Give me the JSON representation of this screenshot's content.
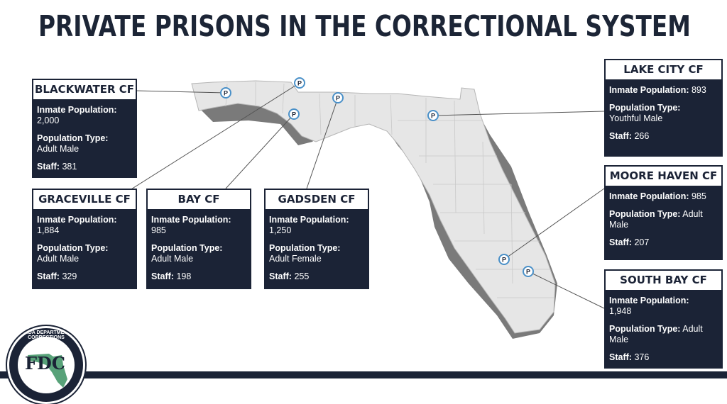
{
  "title": "PRIVATE PRISONS IN THE CORRECTIONAL SYSTEM",
  "marker_letter": "P",
  "logo_text": "FLORIDA DEPARTMENT OF CORRECTIONS",
  "logo_initials": "FDC",
  "colors": {
    "navy": "#1b2336",
    "map_land": "#e6e6e6",
    "map_shadow": "#7a7a7a",
    "marker": "#4a90c8"
  },
  "facilities": [
    {
      "name": "BLACKWATER CF",
      "fields": [
        {
          "label": "Inmate Population:",
          "value": "2,000"
        },
        {
          "label": "Population Type:",
          "value": "Adult Male"
        },
        {
          "label": "Staff:",
          "value": "381"
        }
      ]
    },
    {
      "name": "GRACEVILLE CF",
      "fields": [
        {
          "label": "Inmate Population:",
          "value": "1,884"
        },
        {
          "label": "Population Type:",
          "value": "Adult Male"
        },
        {
          "label": "Staff:",
          "value": "329"
        }
      ]
    },
    {
      "name": "BAY CF",
      "fields": [
        {
          "label": "Inmate Population:",
          "value": "985"
        },
        {
          "label": "Population Type:",
          "value": "Adult Male"
        },
        {
          "label": "Staff:",
          "value": "198"
        }
      ]
    },
    {
      "name": "GADSDEN CF",
      "fields": [
        {
          "label": "Inmate Population:",
          "value": "1,250"
        },
        {
          "label": "Population Type:",
          "value": "Adult Female"
        },
        {
          "label": "Staff:",
          "value": " 255"
        }
      ]
    },
    {
      "name": "LAKE CITY CF",
      "fields": [
        {
          "label": "Inmate Population:",
          "value": "893"
        },
        {
          "label": "Population Type:",
          "value": "Youthful Male"
        },
        {
          "label": "Staff:",
          "value": " 266"
        }
      ]
    },
    {
      "name": "MOORE HAVEN CF",
      "fields": [
        {
          "label": "Inmate Population:",
          "value": "985"
        },
        {
          "label": "Population Type:",
          "value": "Adult Male"
        },
        {
          "label": "Staff:",
          "value": "207"
        }
      ]
    },
    {
      "name": "SOUTH BAY CF",
      "fields": [
        {
          "label": "Inmate Population:",
          "value": "1,948"
        },
        {
          "label": "Population Type:",
          "value": "Adult Male"
        },
        {
          "label": "Staff:",
          "value": "376"
        }
      ]
    }
  ]
}
